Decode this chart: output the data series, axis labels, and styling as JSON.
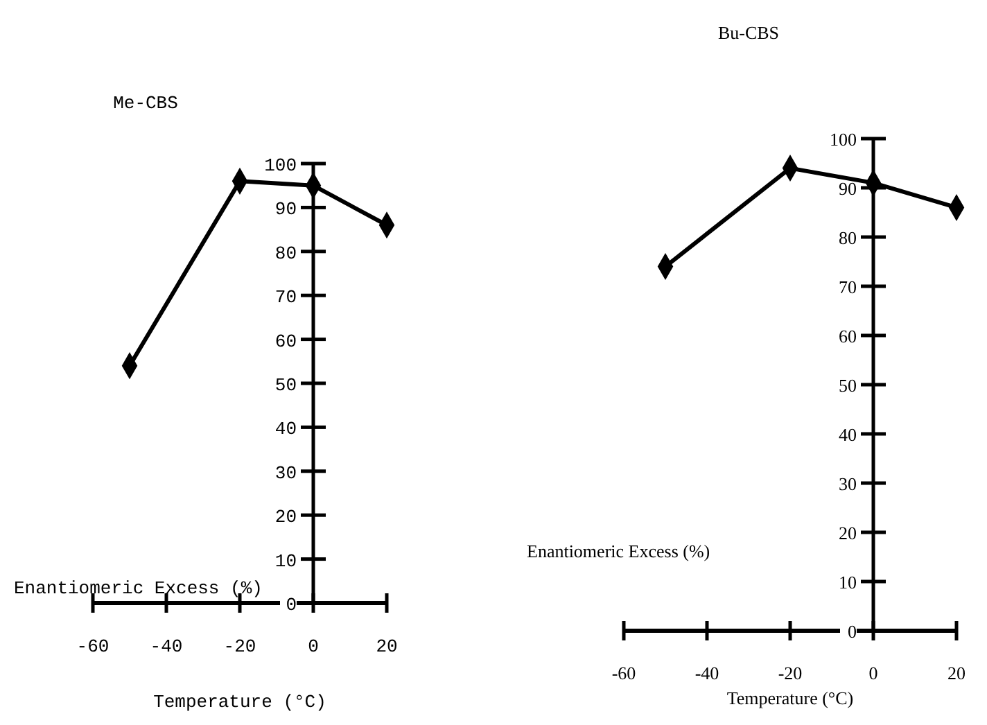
{
  "chart_data": [
    {
      "type": "line",
      "title": "Me-CBS",
      "xlabel": "Temperature (°C)",
      "ylabel": "Enantiomeric Excess (%)",
      "x": [
        -50,
        -20,
        0,
        20
      ],
      "series": [
        {
          "color": "#000000",
          "values": [
            54,
            96,
            95,
            86
          ]
        }
      ],
      "xlim": [
        -60,
        20
      ],
      "xticks": [
        -60,
        -40,
        -20,
        0,
        20
      ],
      "ylim": [
        0,
        100
      ],
      "yticks": [
        0,
        10,
        20,
        30,
        40,
        50,
        60,
        70,
        80,
        90,
        100
      ],
      "marker": "diamond",
      "grid": false
    },
    {
      "type": "line",
      "title": "Bu-CBS",
      "xlabel": "Temperature (°C)",
      "ylabel": "Enantiomeric Excess (%)",
      "x": [
        -50,
        -20,
        0,
        20
      ],
      "series": [
        {
          "color": "#000000",
          "values": [
            74,
            94,
            91,
            86
          ]
        }
      ],
      "xlim": [
        -60,
        20
      ],
      "xticks": [
        -60,
        -40,
        -20,
        0,
        20
      ],
      "ylim": [
        0,
        100
      ],
      "yticks": [
        0,
        10,
        20,
        30,
        40,
        50,
        60,
        70,
        80,
        90,
        100
      ],
      "marker": "diamond",
      "grid": false
    }
  ]
}
